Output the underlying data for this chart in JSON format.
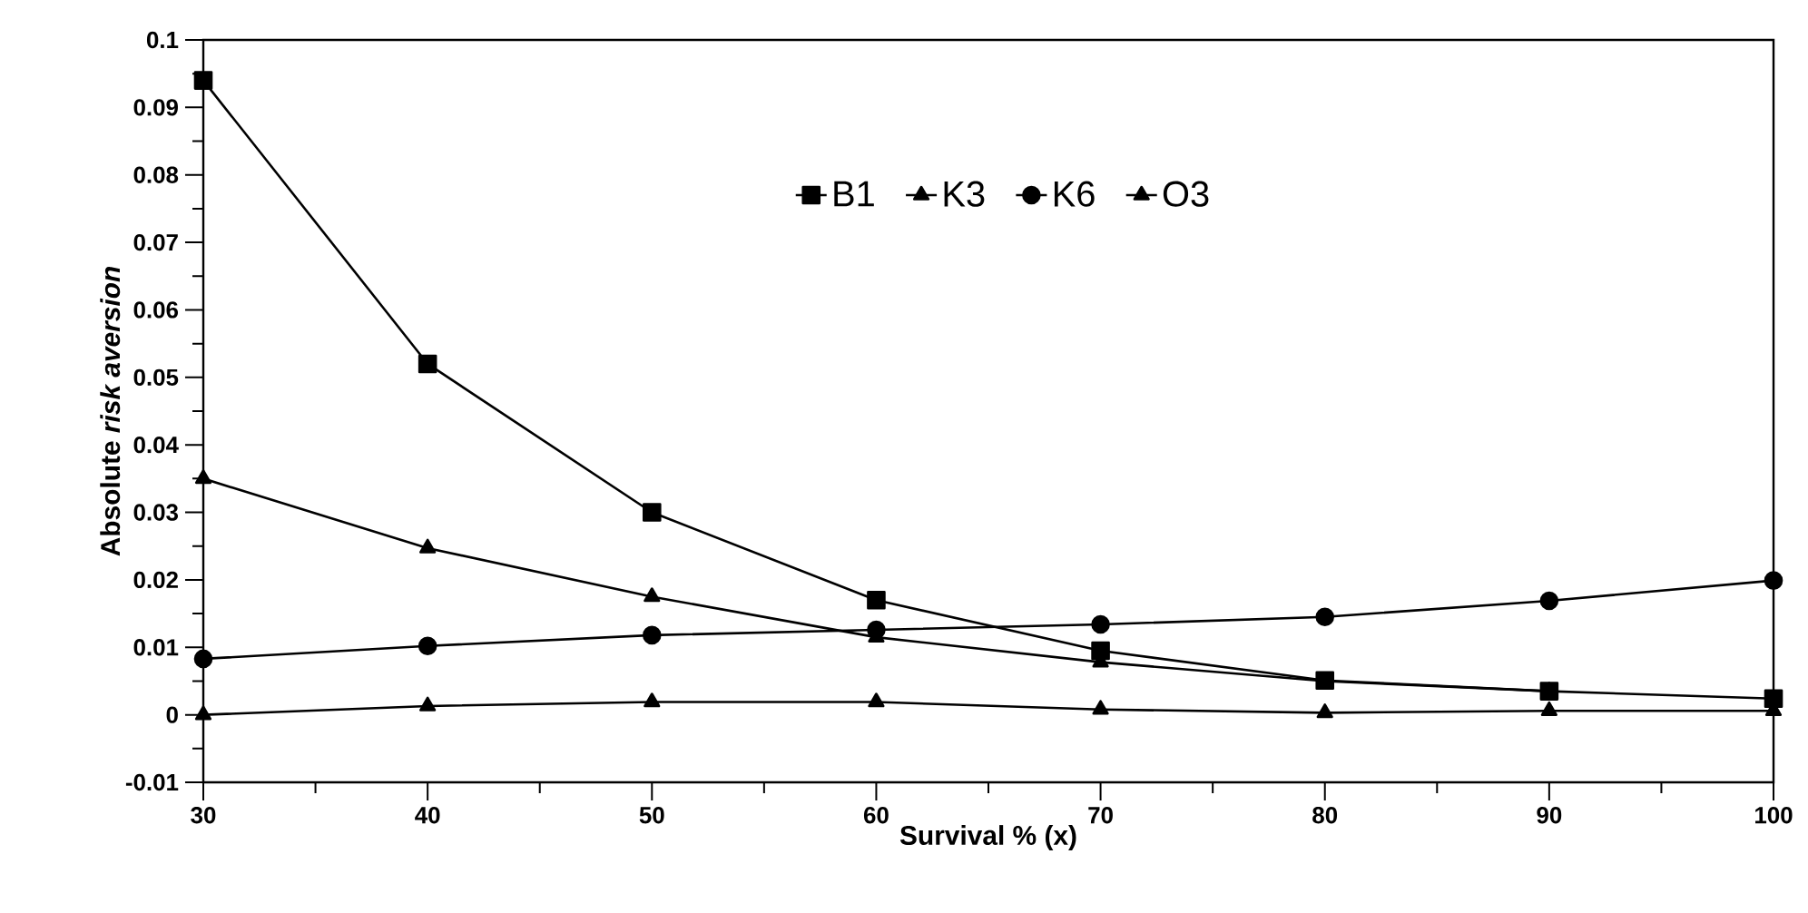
{
  "chart_data": {
    "type": "line",
    "xlabel": "Survival % (x)",
    "ylabel": "Absolute *risk aversion*",
    "x": [
      30,
      40,
      50,
      60,
      70,
      80,
      90,
      100
    ],
    "series": [
      {
        "name": "B1",
        "color": "#000000",
        "marker": "square",
        "values": [
          0.094,
          0.052,
          0.03,
          0.017,
          0.0095,
          0.0051,
          0.0035,
          0.0024
        ]
      },
      {
        "name": "K3",
        "color": "#000000",
        "marker": "triangle",
        "values": [
          0.035,
          0.0247,
          0.0175,
          0.0115,
          0.0078,
          0.005,
          0.0035,
          null
        ]
      },
      {
        "name": "K6",
        "color": "#000000",
        "marker": "circle",
        "values": [
          0.0083,
          0.0102,
          0.0118,
          0.0126,
          0.0134,
          0.0145,
          0.0169,
          0.0199
        ]
      },
      {
        "name": "O3",
        "color": "#000000",
        "marker": "triangle",
        "values": [
          0.0,
          0.0013,
          0.0019,
          0.0019,
          0.0008,
          0.0003,
          0.0006,
          0.0006
        ]
      }
    ],
    "xlim": [
      30,
      100
    ],
    "xticks": [
      30,
      40,
      50,
      60,
      70,
      80,
      90,
      100
    ],
    "ylim": [
      -0.01,
      0.1
    ],
    "yticks": [
      -0.01,
      0,
      0.01,
      0.02,
      0.03,
      0.04,
      0.05,
      0.06,
      0.07,
      0.08,
      0.09,
      0.1
    ],
    "grid": false,
    "legend": "top",
    "line_style": "solid"
  }
}
